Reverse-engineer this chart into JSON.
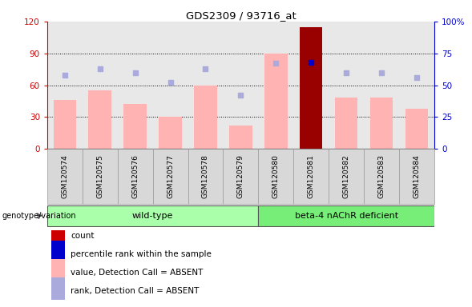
{
  "title": "GDS2309 / 93716_at",
  "samples": [
    "GSM120574",
    "GSM120575",
    "GSM120576",
    "GSM120577",
    "GSM120578",
    "GSM120579",
    "GSM120580",
    "GSM120581",
    "GSM120582",
    "GSM120583",
    "GSM120584"
  ],
  "bar_values_pink": [
    46,
    55,
    42,
    30,
    60,
    22,
    90,
    115,
    48,
    48,
    38
  ],
  "bar_is_red": [
    false,
    false,
    false,
    false,
    false,
    false,
    false,
    true,
    false,
    false,
    false
  ],
  "rank_dots_blue_dark": [
    null,
    null,
    null,
    null,
    null,
    null,
    null,
    68,
    null,
    null,
    null
  ],
  "rank_dots_light": [
    58,
    63,
    60,
    52,
    63,
    42,
    67,
    null,
    60,
    60,
    56
  ],
  "ylim_left": [
    0,
    120
  ],
  "ylim_right": [
    0,
    100
  ],
  "yticks_left": [
    0,
    30,
    60,
    90,
    120
  ],
  "yticks_right": [
    0,
    25,
    50,
    75,
    100
  ],
  "ytick_labels_left": [
    "0",
    "30",
    "60",
    "90",
    "120"
  ],
  "ytick_labels_right": [
    "0",
    "25",
    "50",
    "75",
    "100%"
  ],
  "left_axis_color": "#cc0000",
  "right_axis_color": "#0000cc",
  "bar_pink_color": "#ffb3b3",
  "bar_red_color": "#990000",
  "dot_blue_dark_color": "#0000cc",
  "dot_blue_light_color": "#aaaadd",
  "group_wt_color": "#aaffaa",
  "group_beta_color": "#77ee77",
  "bg_color": "#ffffff",
  "plot_bg_color": "#e8e8e8",
  "cell_bg_color": "#d8d8d8",
  "cell_border_color": "#999999",
  "wt_label": "wild-type",
  "beta_label": "beta-4 nAChR deficient",
  "genotype_label": "genotype/variation",
  "legend_labels": [
    "count",
    "percentile rank within the sample",
    "value, Detection Call = ABSENT",
    "rank, Detection Call = ABSENT"
  ],
  "legend_colors": [
    "#cc0000",
    "#0000cc",
    "#ffb3b3",
    "#aaaadd"
  ],
  "wt_count": 6,
  "beta_count": 5,
  "n_samples": 11
}
